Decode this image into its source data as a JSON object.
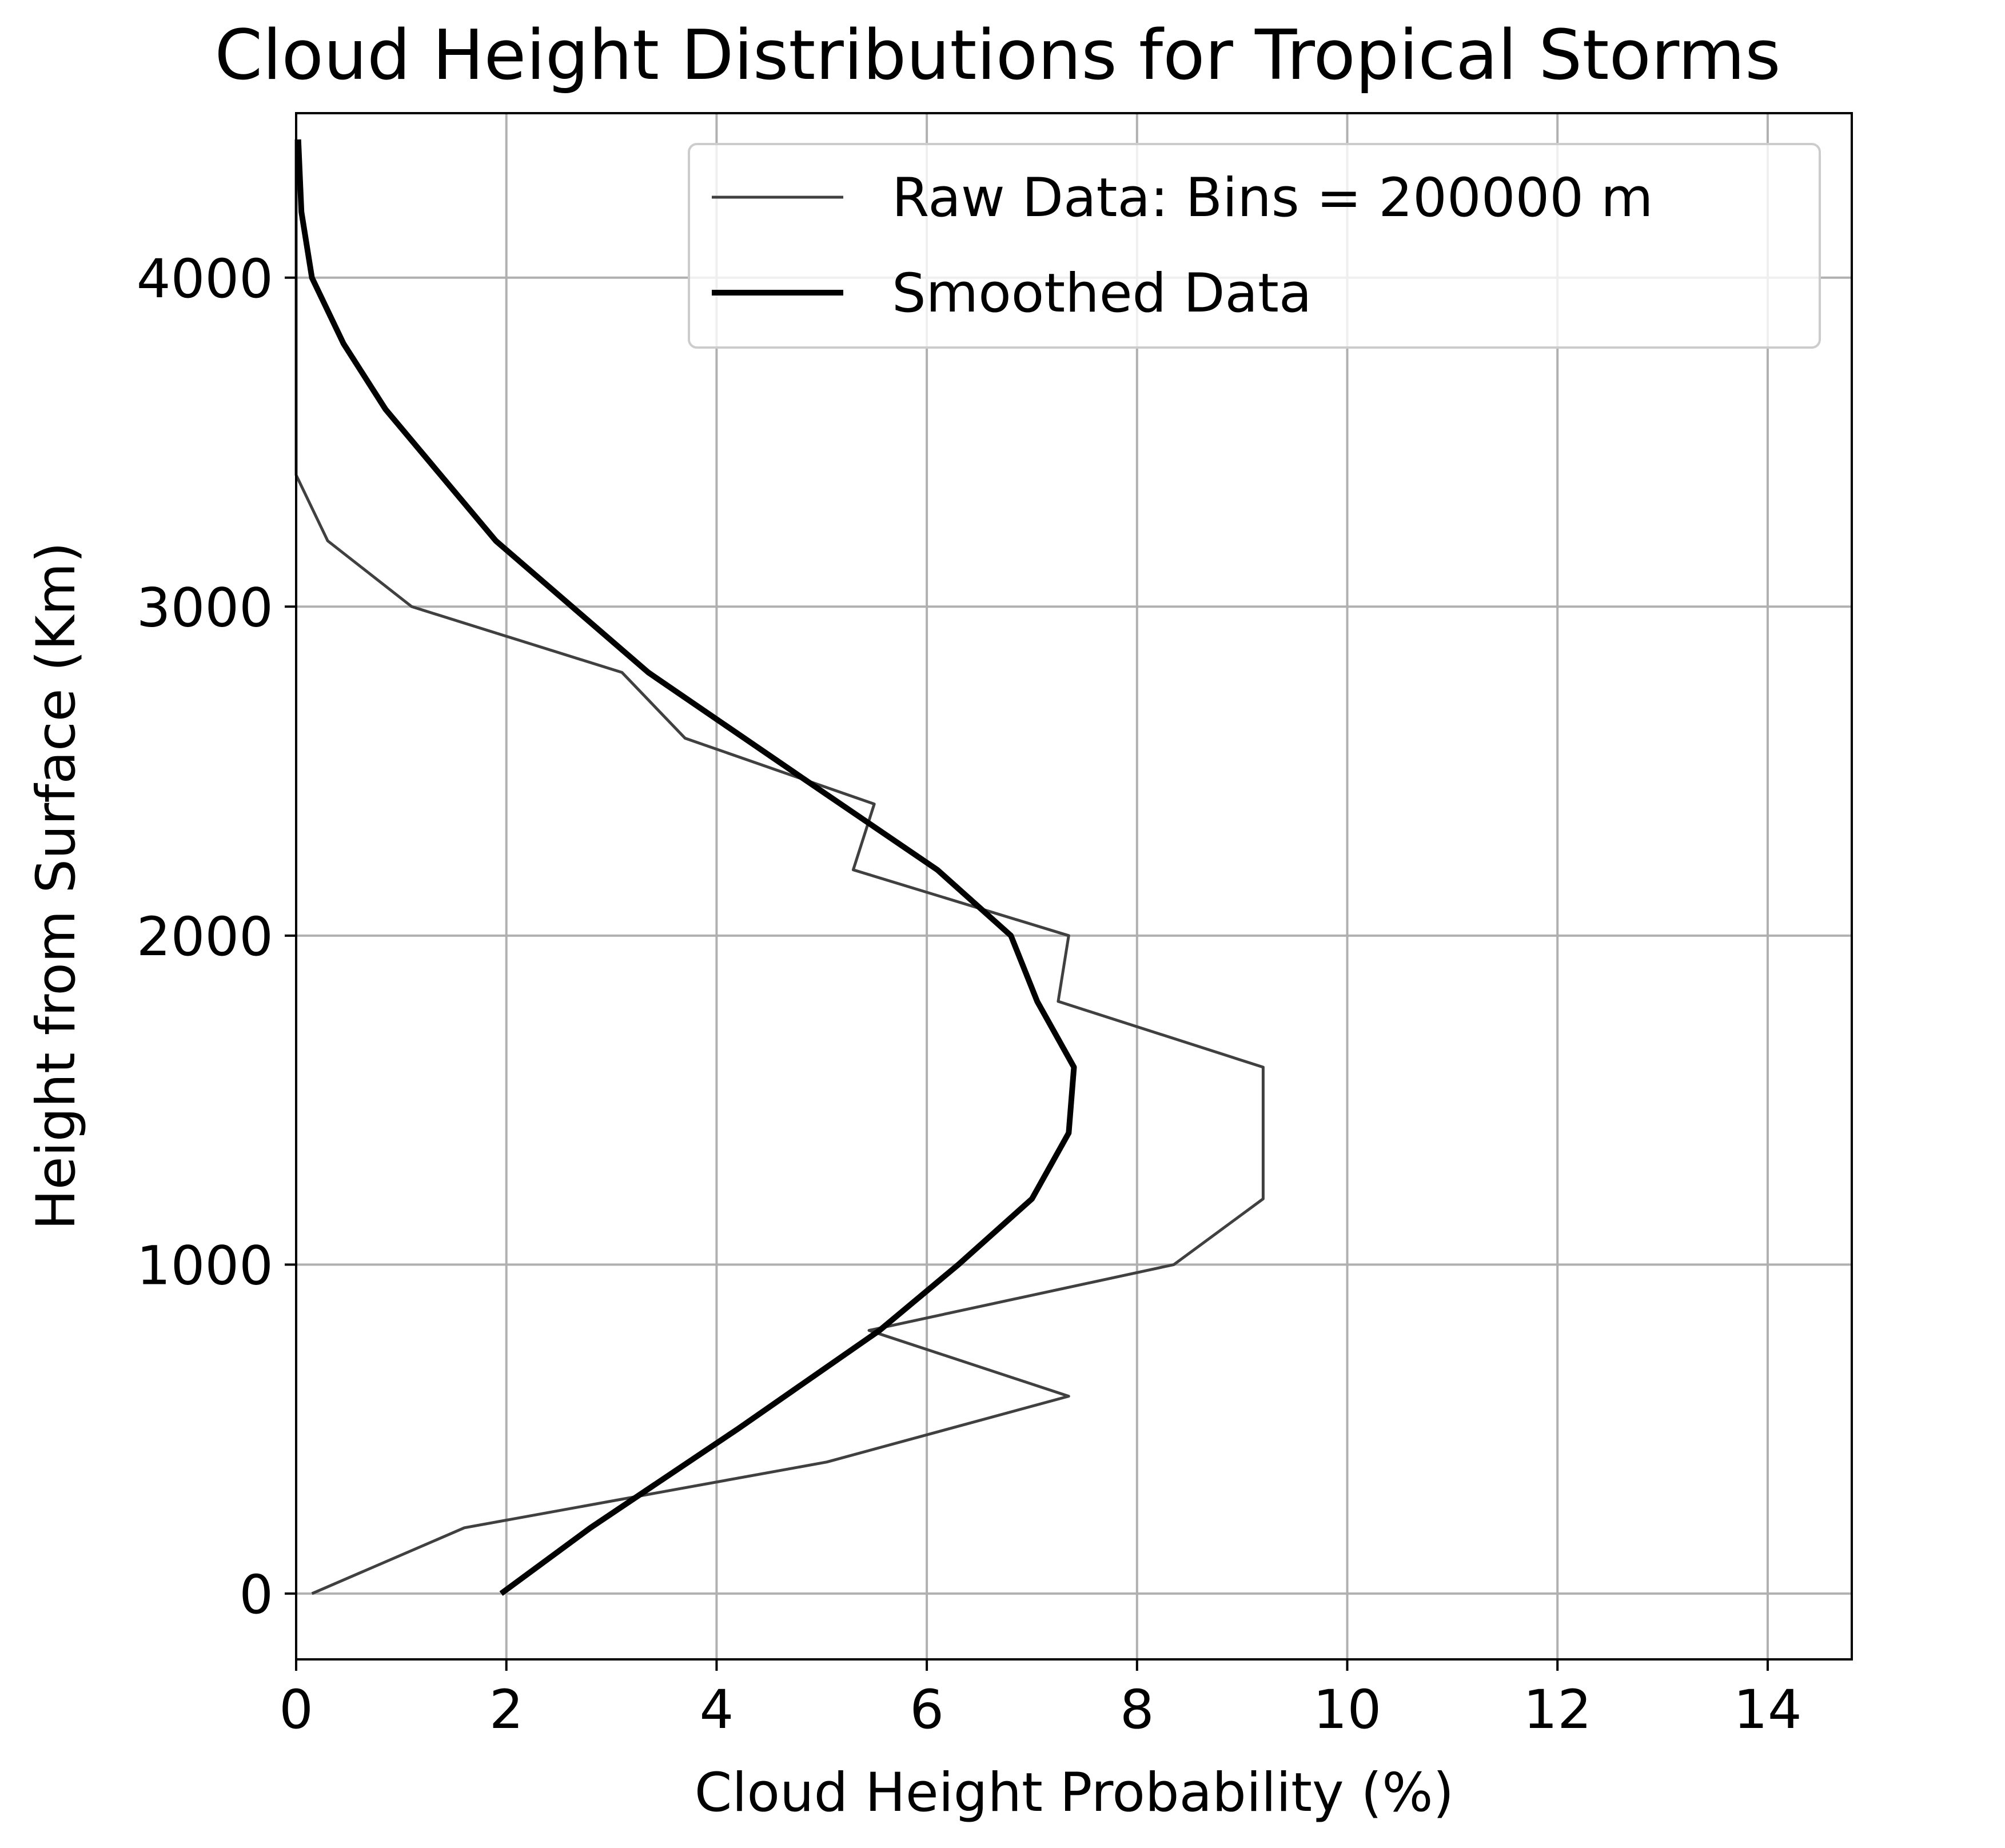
{
  "chart_data": {
    "type": "line",
    "title": "Cloud Height Distributions for Tropical Storms",
    "xlabel": "Cloud Height Probability (%)",
    "ylabel": "Height from Surface (Km)",
    "xlim": [
      0,
      14.8
    ],
    "ylim": [
      -200,
      4500
    ],
    "xticks": [
      0,
      2,
      4,
      6,
      8,
      10,
      12,
      14
    ],
    "yticks": [
      0,
      1000,
      2000,
      3000,
      4000
    ],
    "grid": true,
    "legend_position": "top-right",
    "colors": {
      "raw": "#404040",
      "smoothed": "#000000",
      "grid": "#b0b0b0"
    },
    "series": [
      {
        "name": "Raw Data: Bins = 200000 m",
        "x": [
          0.15,
          1.6,
          5.05,
          7.35,
          5.45,
          8.35,
          9.2,
          9.2,
          7.25,
          7.35,
          5.3,
          5.5,
          3.7,
          3.1,
          1.1,
          0.3,
          0.0,
          0.0,
          0.0,
          0.0,
          0.0,
          0.0,
          0.0
        ],
        "y": [
          0,
          200,
          400,
          600,
          800,
          1000,
          1200,
          1600,
          1800,
          2000,
          2200,
          2400,
          2600,
          2800,
          3000,
          3200,
          3400,
          3600,
          3800,
          4000,
          4200,
          4400,
          4420
        ]
      },
      {
        "name": "Smoothed Data",
        "x": [
          1.95,
          2.8,
          4.2,
          5.55,
          6.3,
          7.0,
          7.35,
          7.4,
          7.05,
          6.8,
          6.1,
          4.95,
          3.35,
          1.9,
          0.85,
          0.45,
          0.15,
          0.05,
          0.02
        ],
        "y": [
          0,
          200,
          500,
          800,
          1000,
          1200,
          1400,
          1600,
          1800,
          2000,
          2200,
          2450,
          2800,
          3200,
          3600,
          3800,
          4000,
          4200,
          4420
        ]
      }
    ]
  }
}
